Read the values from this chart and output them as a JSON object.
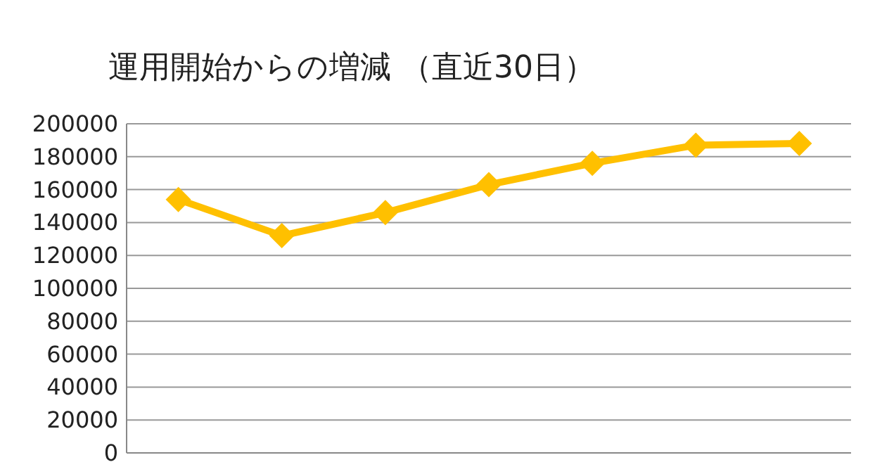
{
  "chart_data": {
    "type": "line",
    "title": "運用開始からの増減 （直近30日）",
    "categories": [
      null,
      null,
      null,
      null,
      null,
      null,
      null
    ],
    "series": [
      {
        "color": "#ffc000",
        "values": [
          154000,
          132000,
          146000,
          163000,
          176000,
          187000,
          188000
        ]
      }
    ],
    "ylim": [
      0,
      200000
    ],
    "yticks": [
      0,
      20000,
      40000,
      60000,
      80000,
      100000,
      120000,
      140000,
      160000,
      180000,
      200000
    ],
    "grid": "y",
    "marker": "diamond",
    "line_style": "solid"
  }
}
